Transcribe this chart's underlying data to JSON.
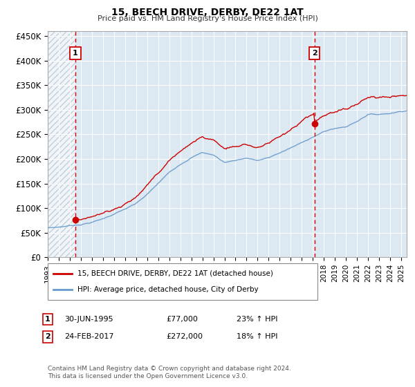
{
  "title": "15, BEECH DRIVE, DERBY, DE22 1AT",
  "subtitle": "Price paid vs. HM Land Registry's House Price Index (HPI)",
  "ylabel_ticks": [
    0,
    50000,
    100000,
    150000,
    200000,
    250000,
    300000,
    350000,
    400000,
    450000
  ],
  "ylim": [
    0,
    460000
  ],
  "xlim_start": 1993.0,
  "xlim_end": 2025.5,
  "x_tick_years": [
    1993,
    1994,
    1995,
    1996,
    1997,
    1998,
    1999,
    2000,
    2001,
    2002,
    2003,
    2004,
    2005,
    2006,
    2007,
    2008,
    2009,
    2010,
    2011,
    2012,
    2013,
    2014,
    2015,
    2016,
    2017,
    2018,
    2019,
    2020,
    2021,
    2022,
    2023,
    2024,
    2025
  ],
  "sale1_date": 1995.5,
  "sale1_price": 77000,
  "sale2_date": 2017.15,
  "sale2_price": 272000,
  "legend_line1": "15, BEECH DRIVE, DERBY, DE22 1AT (detached house)",
  "legend_line2": "HPI: Average price, detached house, City of Derby",
  "footer": "Contains HM Land Registry data © Crown copyright and database right 2024.\nThis data is licensed under the Open Government Licence v3.0.",
  "line_color_red": "#cc0000",
  "line_color_blue": "#6699cc",
  "box_color": "#cc0000",
  "vline_color": "#dd0000",
  "hatch_color": "#c8d4dc",
  "bg_color": "#dce8f2"
}
